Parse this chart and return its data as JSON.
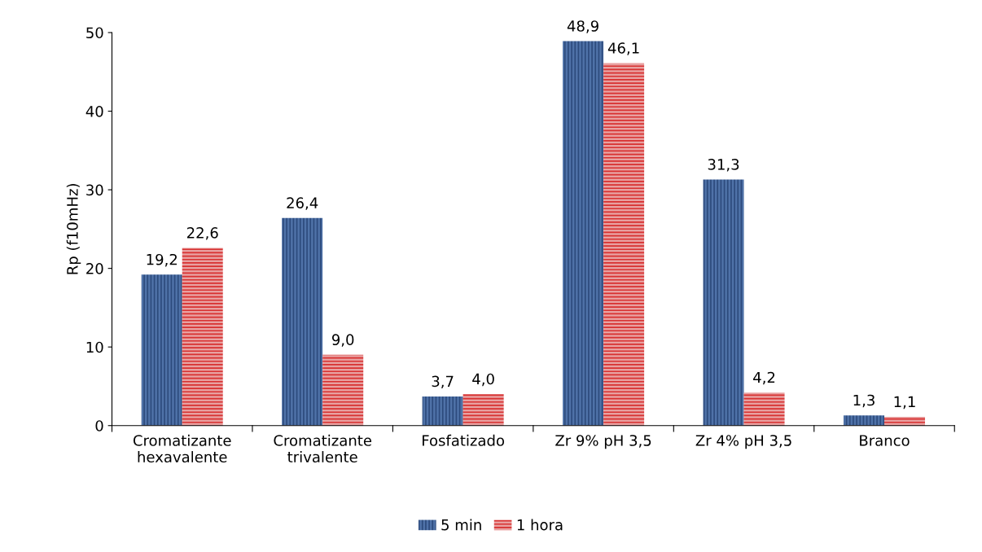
{
  "chart_data": {
    "type": "bar",
    "ylabel": "Rp (f10mHz)",
    "categories": [
      "Cromatizante\nhexavalente",
      "Cromatizante\ntrivalente",
      "Fosfatizado",
      "Zr 9% pH 3,5",
      "Zr 4% pH 3,5",
      "Branco"
    ],
    "series": [
      {
        "name": "5 min",
        "color": "#4f72a8",
        "values": [
          19.2,
          26.4,
          3.7,
          48.9,
          31.3,
          1.3
        ],
        "value_labels": [
          "19,2",
          "26,4",
          "3,7",
          "48,9",
          "31,3",
          "1,3"
        ]
      },
      {
        "name": "1 hora",
        "color": "#e8a0a0",
        "values": [
          22.6,
          9.0,
          4.0,
          46.1,
          4.2,
          1.1
        ],
        "value_labels": [
          "22,6",
          "9,0",
          "4,0",
          "46,1",
          "4,2",
          "1,1"
        ]
      }
    ],
    "ylim": [
      0,
      50
    ],
    "yticks": [
      0,
      10,
      20,
      30,
      40,
      50
    ],
    "grid": false,
    "legend": "bottom"
  }
}
